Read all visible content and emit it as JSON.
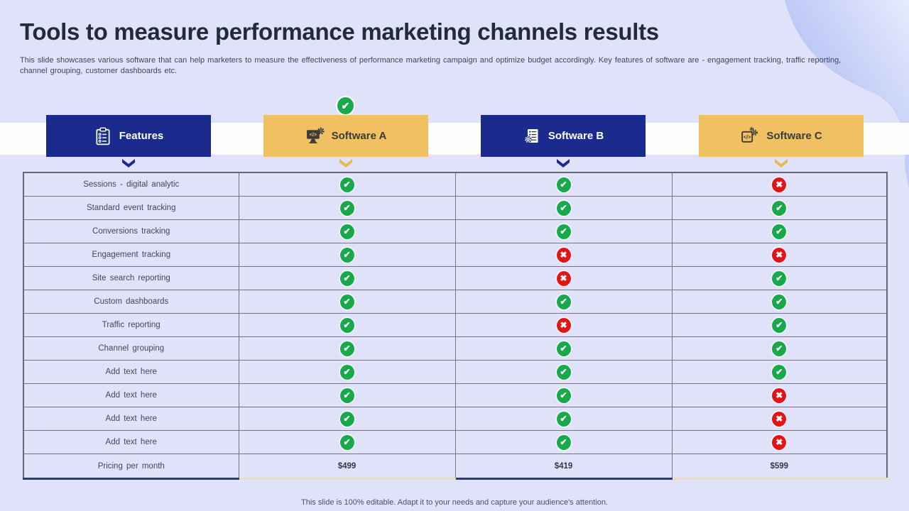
{
  "slide": {
    "title": "Tools to measure performance marketing channels results",
    "subtitle": "This slide showcases various software that can help marketers to measure the effectiveness of performance marketing campaign and optimize budget accordingly. Key features of software are - engagement tracking, traffic reporting, channel grouping, customer dashboards etc.",
    "footer": "This slide is 100% editable. Adapt it to your needs and capture your audience's attention."
  },
  "header": {
    "columns": [
      {
        "label": "Features",
        "theme": "navy",
        "icon": "clipboard-checklist-icon"
      },
      {
        "label": "Software A",
        "theme": "gold",
        "icon": "monitor-code-gear-icon"
      },
      {
        "label": "Software B",
        "theme": "navy",
        "icon": "document-gear-icon"
      },
      {
        "label": "Software C",
        "theme": "gold",
        "icon": "code-window-gear-icon"
      }
    ],
    "highlight_check_above_column": "Software A"
  },
  "table": {
    "rows": [
      {
        "feature": "Sessions - digital analytic",
        "software_a": "yes",
        "software_b": "yes",
        "software_c": "no"
      },
      {
        "feature": "Standard event tracking",
        "software_a": "yes",
        "software_b": "yes",
        "software_c": "yes"
      },
      {
        "feature": "Conversions tracking",
        "software_a": "yes",
        "software_b": "yes",
        "software_c": "yes"
      },
      {
        "feature": "Engagement tracking",
        "software_a": "yes",
        "software_b": "no",
        "software_c": "no"
      },
      {
        "feature": "Site search reporting",
        "software_a": "yes",
        "software_b": "no",
        "software_c": "yes"
      },
      {
        "feature": "Custom dashboards",
        "software_a": "yes",
        "software_b": "yes",
        "software_c": "yes"
      },
      {
        "feature": "Traffic reporting",
        "software_a": "yes",
        "software_b": "no",
        "software_c": "yes"
      },
      {
        "feature": "Channel grouping",
        "software_a": "yes",
        "software_b": "yes",
        "software_c": "yes"
      },
      {
        "feature": "Add text here",
        "software_a": "yes",
        "software_b": "yes",
        "software_c": "yes"
      },
      {
        "feature": "Add text here",
        "software_a": "yes",
        "software_b": "yes",
        "software_c": "no"
      },
      {
        "feature": "Add text here",
        "software_a": "yes",
        "software_b": "yes",
        "software_c": "no"
      },
      {
        "feature": "Add text here",
        "software_a": "yes",
        "software_b": "yes",
        "software_c": "no"
      }
    ],
    "pricing": {
      "label": "Pricing per month",
      "software_a": "$499",
      "software_b": "$419",
      "software_c": "$599"
    }
  },
  "colors": {
    "background": "#dfe2f8",
    "navy": "#1b2b8d",
    "gold": "#efc161",
    "check_green": "#17a94a",
    "cross_red": "#e11515"
  }
}
